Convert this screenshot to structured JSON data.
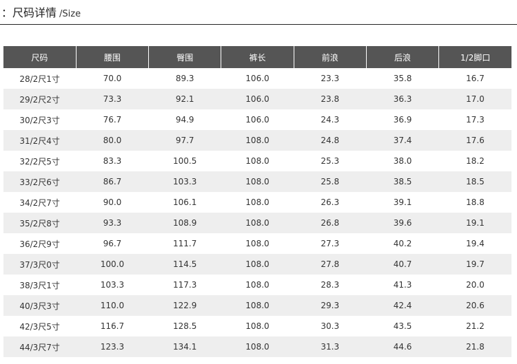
{
  "header": {
    "title": "：尺码详情",
    "subtitle": "/Size"
  },
  "table": {
    "columns": [
      "尺码",
      "腰围",
      "臀围",
      "裤长",
      "前浪",
      "后浪",
      "1/2脚口"
    ],
    "rows": [
      [
        "28/2尺1寸",
        "70.0",
        "89.3",
        "106.0",
        "23.3",
        "35.8",
        "16.7"
      ],
      [
        "29/2尺2寸",
        "73.3",
        "92.1",
        "106.0",
        "23.8",
        "36.3",
        "17.0"
      ],
      [
        "30/2尺3寸",
        "76.7",
        "94.9",
        "106.0",
        "24.3",
        "36.9",
        "17.3"
      ],
      [
        "31/2尺4寸",
        "80.0",
        "97.7",
        "108.0",
        "24.8",
        "37.4",
        "17.6"
      ],
      [
        "32/2尺5寸",
        "83.3",
        "100.5",
        "108.0",
        "25.3",
        "38.0",
        "18.2"
      ],
      [
        "33/2尺6寸",
        "86.7",
        "103.3",
        "108.0",
        "25.8",
        "38.5",
        "18.5"
      ],
      [
        "34/2尺7寸",
        "90.0",
        "106.1",
        "108.0",
        "26.3",
        "39.1",
        "18.8"
      ],
      [
        "35/2尺8寸",
        "93.3",
        "108.9",
        "108.0",
        "26.8",
        "39.6",
        "19.1"
      ],
      [
        "36/2尺9寸",
        "96.7",
        "111.7",
        "108.0",
        "27.3",
        "40.2",
        "19.4"
      ],
      [
        "37/3尺0寸",
        "100.0",
        "114.5",
        "108.0",
        "27.8",
        "40.7",
        "19.7"
      ],
      [
        "38/3尺1寸",
        "103.3",
        "117.3",
        "108.0",
        "28.3",
        "41.3",
        "20.0"
      ],
      [
        "40/3尺3寸",
        "110.0",
        "122.9",
        "108.0",
        "29.3",
        "42.4",
        "20.6"
      ],
      [
        "42/3尺5寸",
        "116.7",
        "128.5",
        "108.0",
        "30.3",
        "43.5",
        "21.2"
      ],
      [
        "44/3尺7寸",
        "123.3",
        "134.1",
        "108.0",
        "31.3",
        "44.6",
        "21.8"
      ]
    ]
  }
}
